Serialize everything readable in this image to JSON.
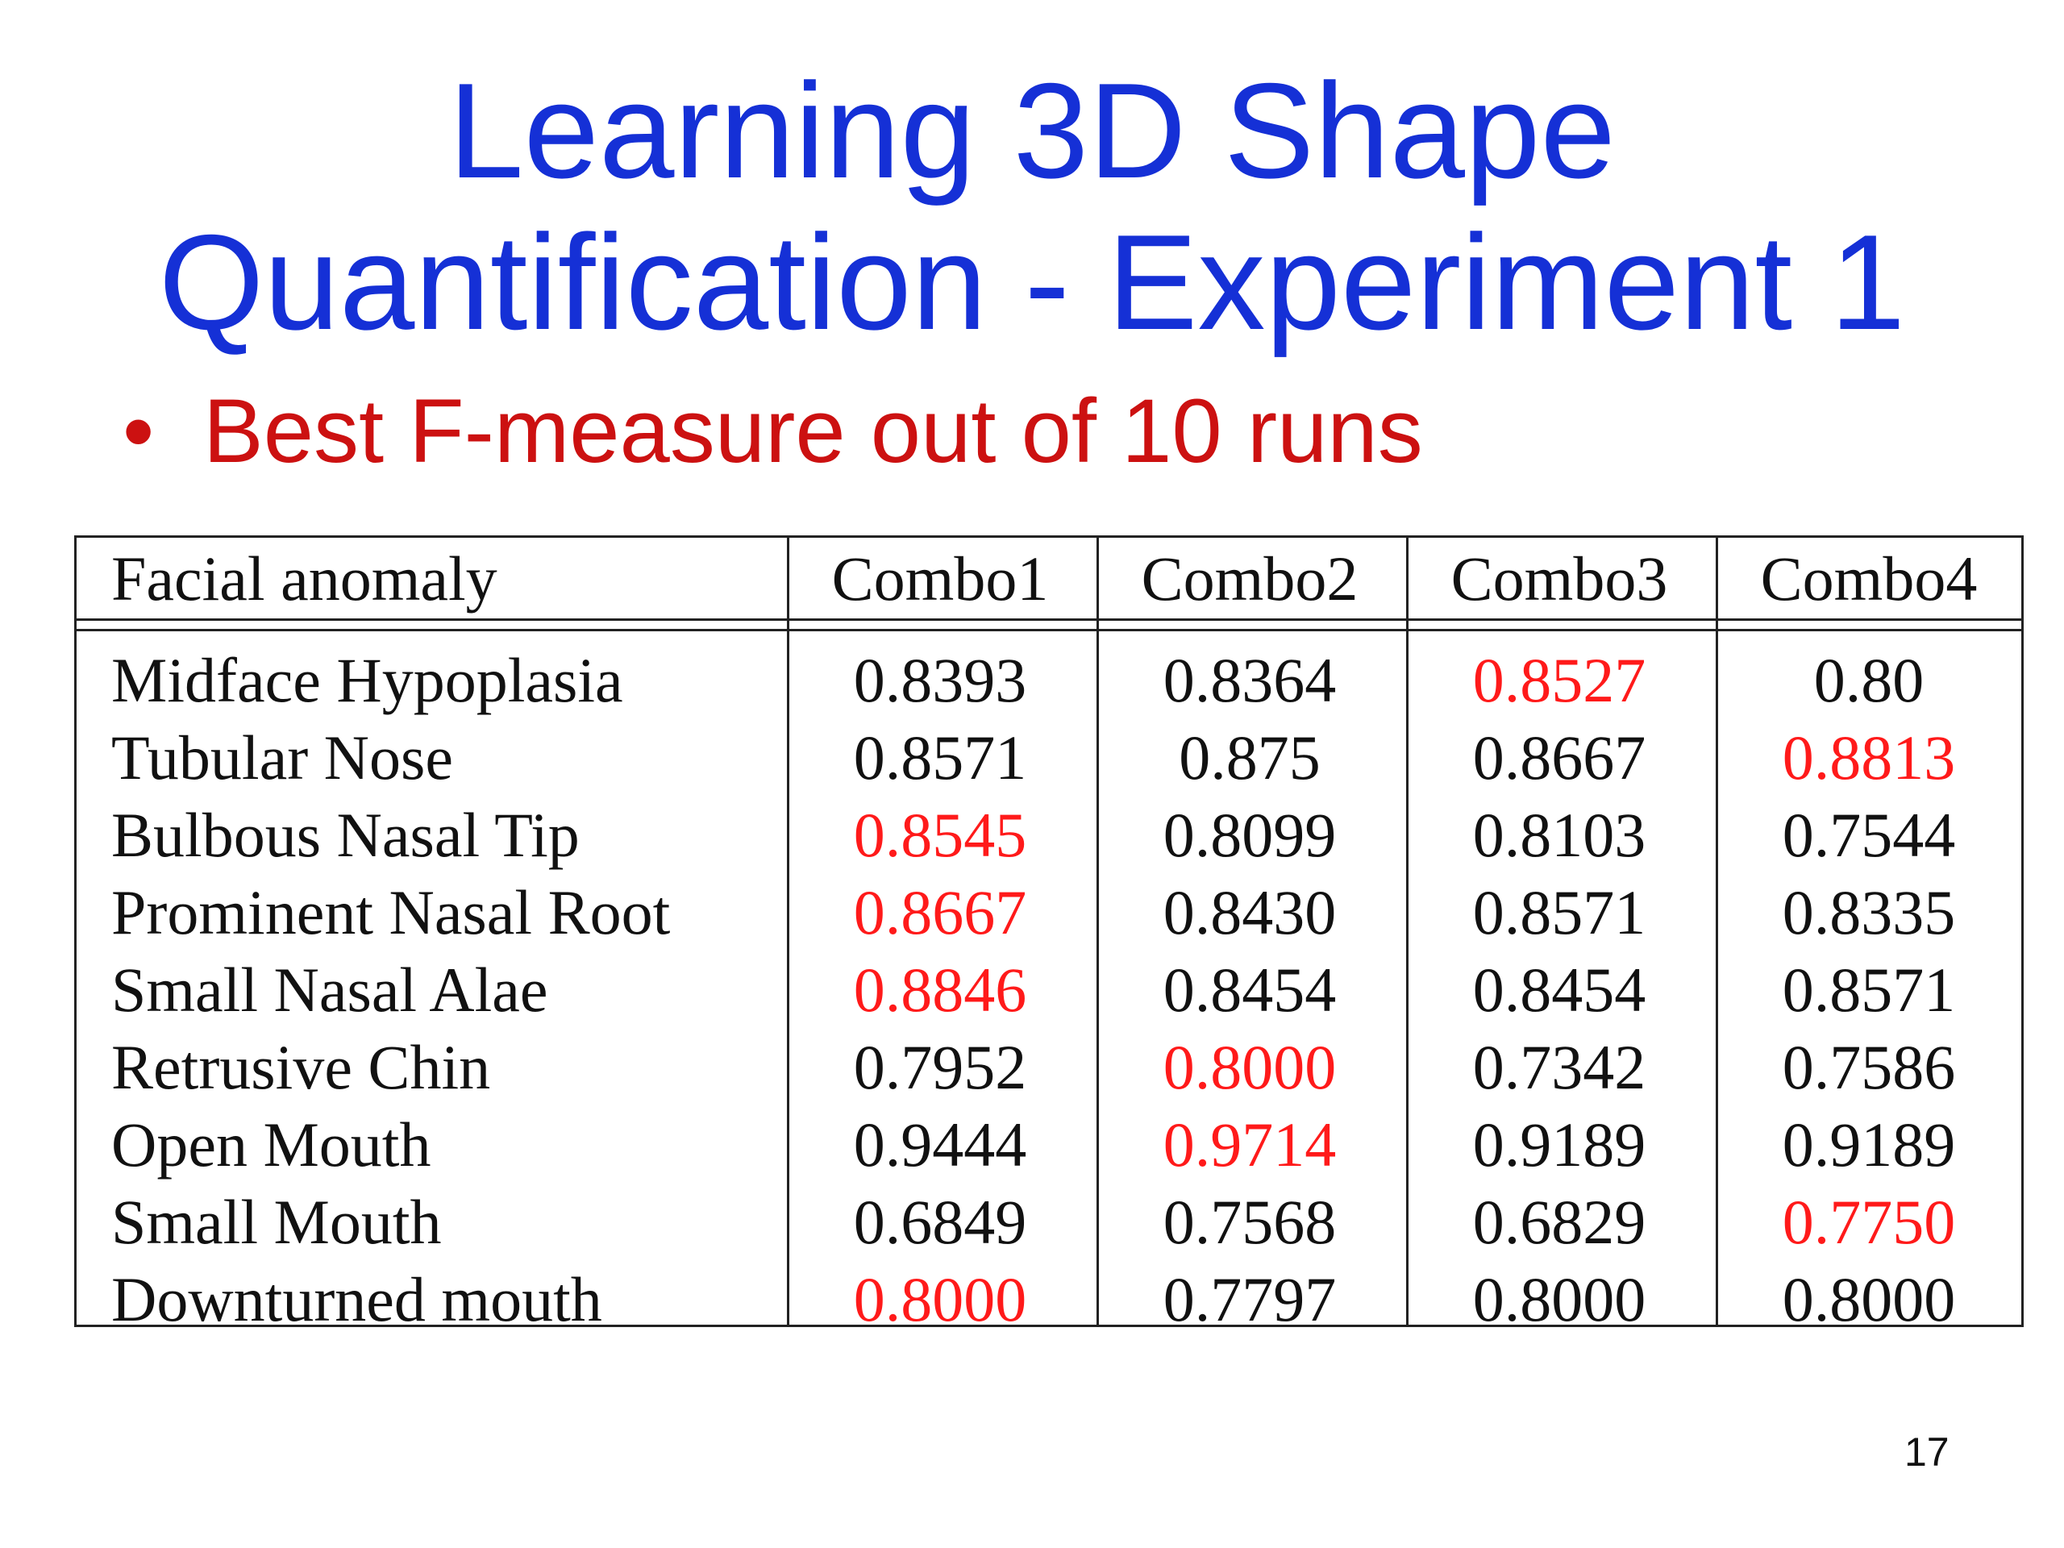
{
  "slide": {
    "title_line1": "Learning 3D Shape",
    "title_line2": "Quantification - Experiment 1",
    "bullet_symbol": "•",
    "bullet_text": "Best F-measure out of 10 runs",
    "page_number": "17"
  },
  "table": {
    "headers": [
      "Facial anomaly",
      "Combo1",
      "Combo2",
      "Combo3",
      "Combo4"
    ],
    "highlight_color": "#ff1a1a",
    "rows": [
      {
        "label": "Midface Hypoplasia",
        "values": [
          "0.8393",
          "0.8364",
          "0.8527",
          "0.80"
        ],
        "best": 2
      },
      {
        "label": "Tubular Nose",
        "values": [
          "0.8571",
          "0.875",
          "0.8667",
          "0.8813"
        ],
        "best": 3
      },
      {
        "label": "Bulbous Nasal Tip",
        "values": [
          "0.8545",
          "0.8099",
          "0.8103",
          "0.7544"
        ],
        "best": 0
      },
      {
        "label": "Prominent Nasal Root",
        "values": [
          "0.8667",
          "0.8430",
          "0.8571",
          "0.8335"
        ],
        "best": 0
      },
      {
        "label": "Small Nasal Alae",
        "values": [
          "0.8846",
          "0.8454",
          "0.8454",
          "0.8571"
        ],
        "best": 0
      },
      {
        "label": "Retrusive Chin",
        "values": [
          "0.7952",
          "0.8000",
          "0.7342",
          "0.7586"
        ],
        "best": 1
      },
      {
        "label": "Open Mouth",
        "values": [
          "0.9444",
          "0.9714",
          "0.9189",
          "0.9189"
        ],
        "best": 1
      },
      {
        "label": "Small Mouth",
        "values": [
          "0.6849",
          "0.7568",
          "0.6829",
          "0.7750"
        ],
        "best": 3
      },
      {
        "label": "Downturned mouth",
        "values": [
          "0.8000",
          "0.7797",
          "0.8000",
          "0.8000"
        ],
        "best": 0
      }
    ]
  }
}
